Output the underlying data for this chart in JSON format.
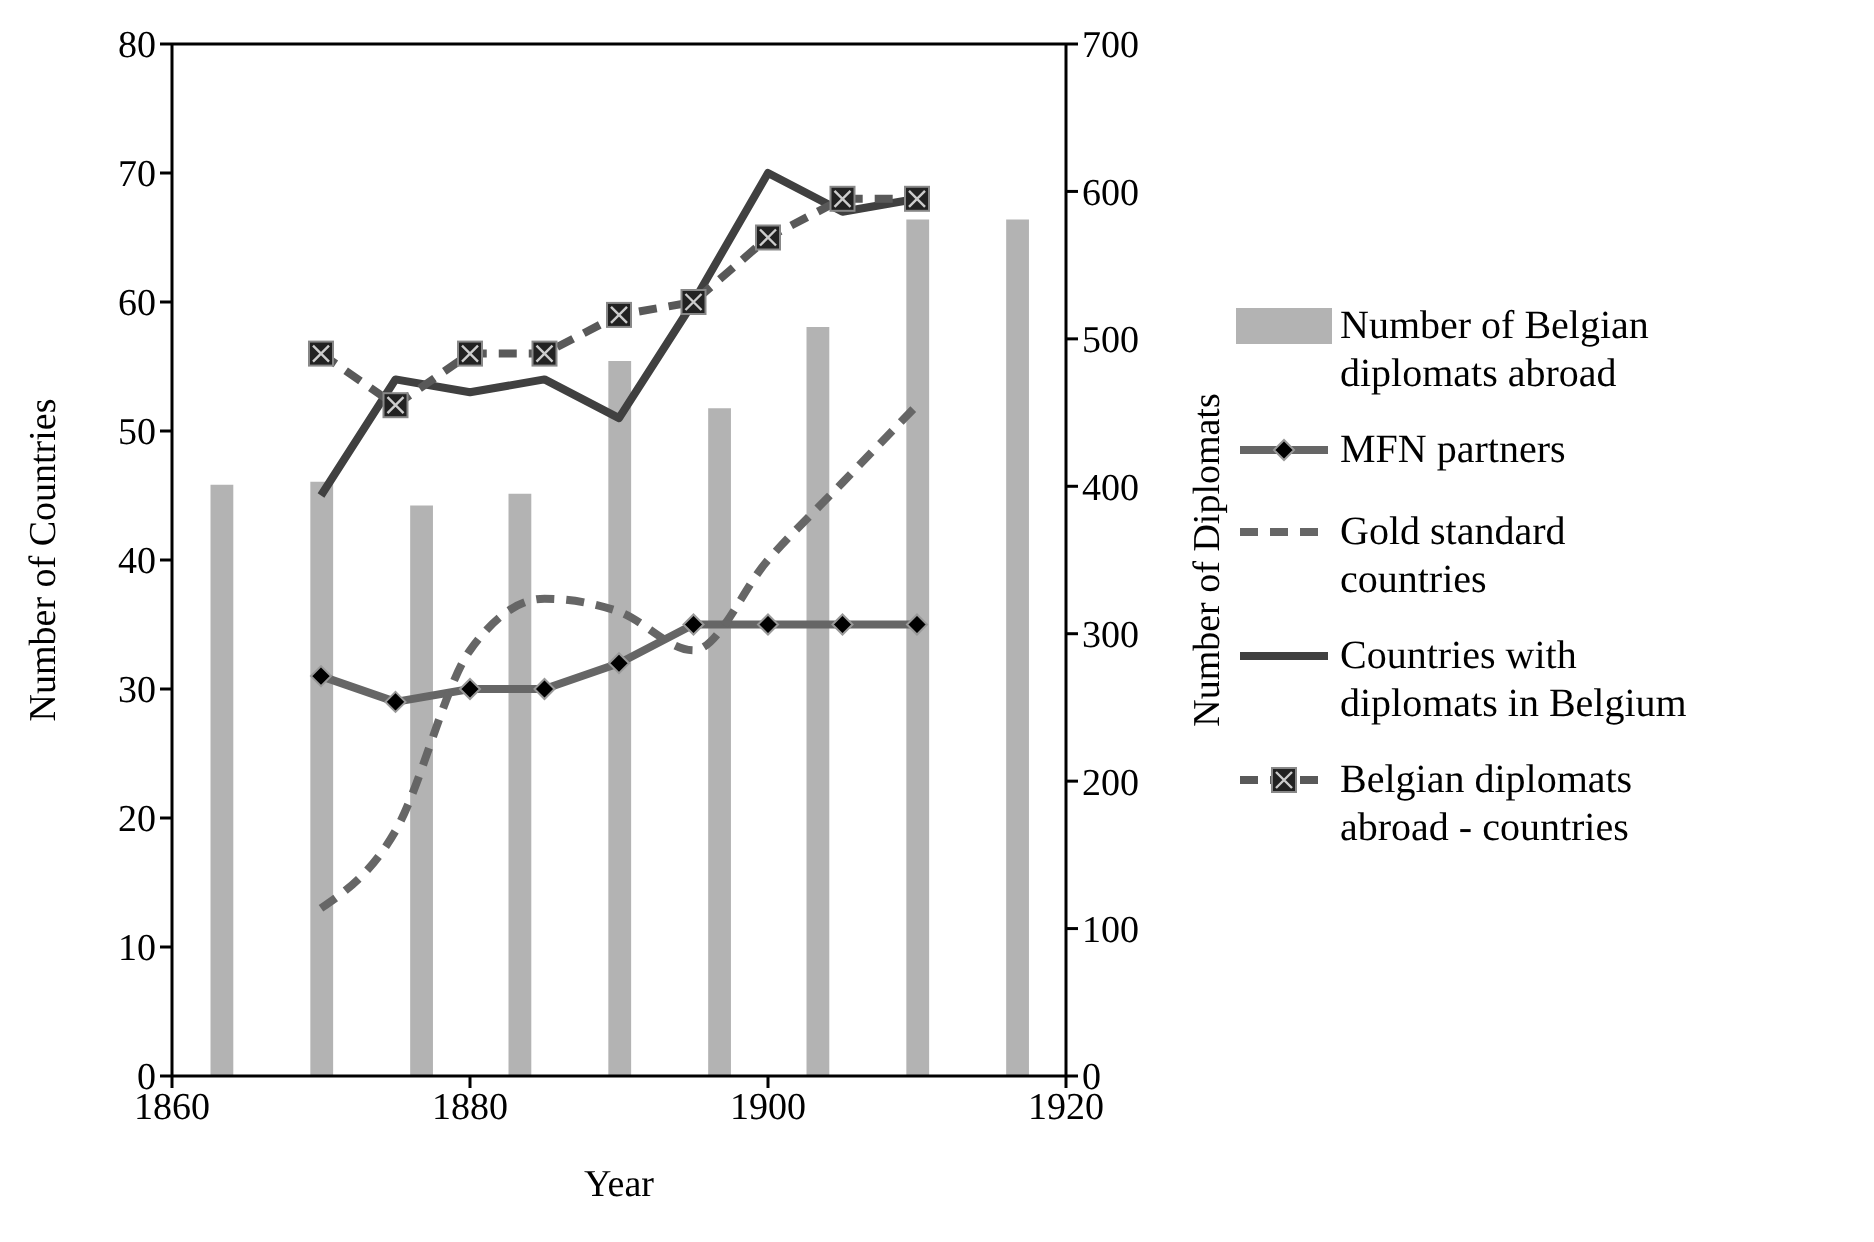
{
  "chart_data": {
    "type": "line",
    "xlabel": "Year",
    "ylabel": "Number  of Countries",
    "y2label": "Number of Diplomats",
    "xlim": [
      1860,
      1920
    ],
    "xticks": [
      1860,
      1880,
      1900,
      1920
    ],
    "ylim": [
      0,
      80
    ],
    "yticks": [
      0,
      10,
      20,
      30,
      40,
      50,
      60,
      70,
      80
    ],
    "y2lim": [
      0,
      700
    ],
    "y2ticks": [
      0,
      100,
      200,
      300,
      400,
      500,
      600,
      700
    ],
    "grid": false,
    "legend": "right",
    "series": [
      {
        "name": "Number of Belgian diplomats abroad",
        "type": "bar",
        "axis": "y2",
        "color": "#b3b3b3",
        "x": [
          1863.3,
          1870,
          1876.7,
          1883.3,
          1890,
          1896.7,
          1903.3,
          1910,
          1916.7
        ],
        "values": [
          401,
          403,
          387,
          395,
          485,
          453,
          508,
          581,
          581
        ]
      },
      {
        "name": "MFN partners",
        "color": "#666666",
        "marker": "diamond",
        "line_style": "solid",
        "x": [
          1870,
          1875,
          1880,
          1885,
          1890,
          1895,
          1900,
          1905,
          1910
        ],
        "values": [
          31,
          29,
          30,
          30,
          32,
          35,
          35,
          35,
          35
        ]
      },
      {
        "name": "Gold standard countries",
        "color": "#666666",
        "marker": "none",
        "line_style": "dashed",
        "x": [
          1870,
          1875,
          1880,
          1885,
          1890,
          1895,
          1900,
          1905,
          1910
        ],
        "values": [
          13,
          19,
          33,
          37,
          36,
          33,
          40,
          46,
          52
        ]
      },
      {
        "name": "Countries with diplomats in Belgium",
        "color": "#404040",
        "marker": "none",
        "line_style": "solid",
        "x": [
          1870,
          1875,
          1880,
          1885,
          1890,
          1895,
          1900,
          1905,
          1910
        ],
        "values": [
          45,
          54,
          53,
          54,
          51,
          60,
          70,
          67,
          68
        ]
      },
      {
        "name": "Belgian diplomats abroad - countries",
        "color": "#595959",
        "marker": "square",
        "line_style": "dashed",
        "x": [
          1870,
          1875,
          1880,
          1885,
          1890,
          1895,
          1900,
          1905,
          1910
        ],
        "values": [
          56,
          52,
          56,
          56,
          59,
          60,
          65,
          68,
          68
        ]
      }
    ]
  }
}
